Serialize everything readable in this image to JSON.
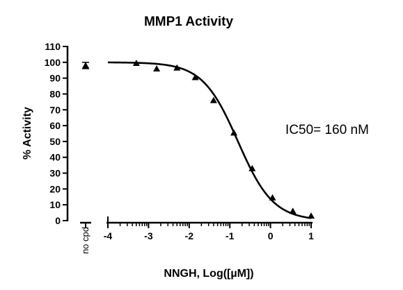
{
  "chart_data": {
    "type": "scatter",
    "title": "MMP1 Activity",
    "xlabel": "NNGH, Log([µM])",
    "ylabel": "% Activity",
    "annotation": "IC50= 160 nM",
    "control_label": "no cpd",
    "control_point": {
      "y": 98,
      "yerr": 2
    },
    "xlim": [
      -4,
      1
    ],
    "ylim": [
      0,
      110
    ],
    "xticks": [
      -4,
      -3,
      -2,
      -1,
      0,
      1
    ],
    "xtick_labels": [
      "-4",
      "-3",
      "-2",
      "-1",
      "0",
      "1"
    ],
    "yticks": [
      0,
      10,
      20,
      30,
      40,
      50,
      60,
      70,
      80,
      90,
      100,
      110
    ],
    "ytick_labels": [
      "0",
      "10",
      "20",
      "30",
      "40",
      "50",
      "60",
      "70",
      "80",
      "90",
      "100",
      "110"
    ],
    "series": [
      {
        "marker": "triangle",
        "points": [
          {
            "x": -3.3,
            "y": 99.5
          },
          {
            "x": -2.8,
            "y": 96
          },
          {
            "x": -2.3,
            "y": 96.5
          },
          {
            "x": -1.85,
            "y": 90.5
          },
          {
            "x": -1.4,
            "y": 76
          },
          {
            "x": -0.9,
            "y": 55.5
          },
          {
            "x": -0.45,
            "y": 33
          },
          {
            "x": 0.05,
            "y": 14.5
          },
          {
            "x": 0.55,
            "y": 6
          },
          {
            "x": 1.0,
            "y": 3
          }
        ]
      }
    ],
    "fit_curve": {
      "model": "sigmoidal dose-response",
      "top": 100,
      "bottom": 0,
      "log_ic50": -0.8,
      "hill_slope": -1.0,
      "x_range": [
        -4,
        1
      ]
    },
    "grid": false,
    "legend": "none"
  }
}
